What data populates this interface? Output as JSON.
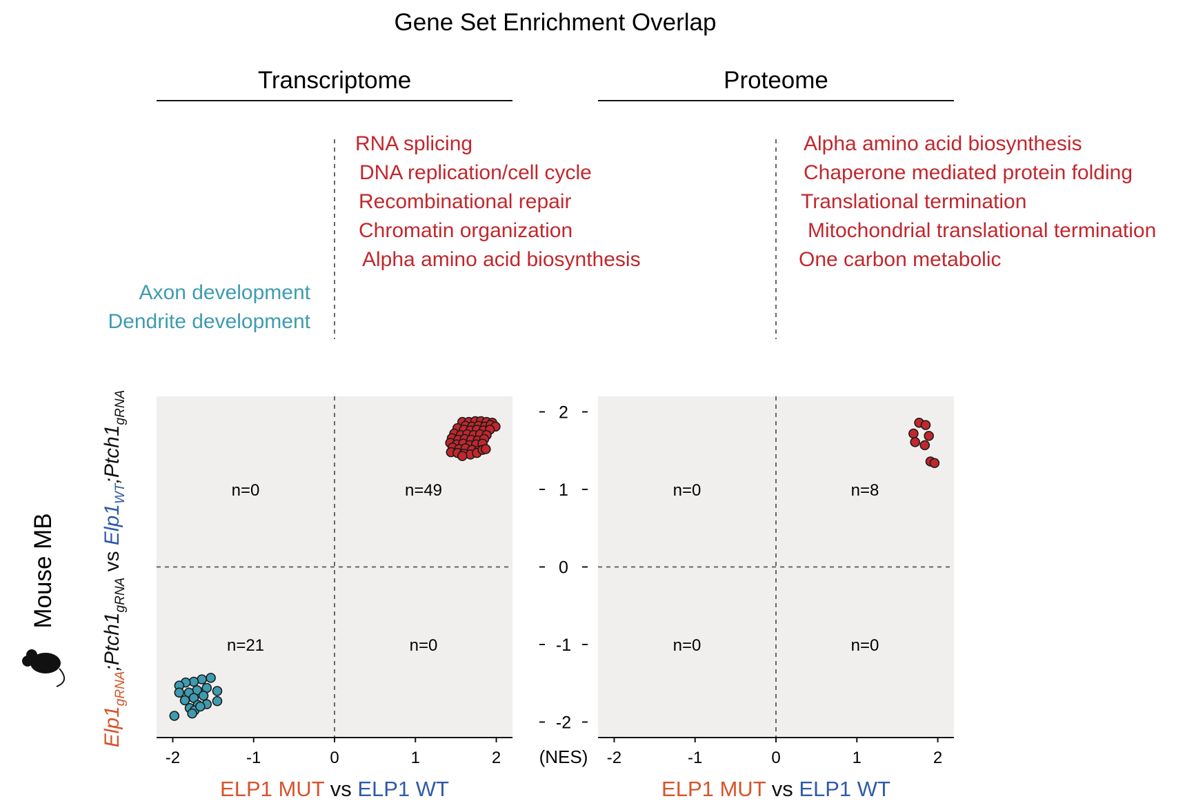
{
  "title": "Gene Set Enrichment Overlap",
  "row_label": "Mouse MB",
  "y_axis_label": {
    "a_base": "Elp1",
    "a_sub": "gRNA",
    "b_base": ";Ptch1",
    "b_sub": "gRNA",
    "vs": " vs ",
    "c_base": "Elp1",
    "c_sub": "WT",
    "d_base": ";Ptch1",
    "d_sub": "gRNA"
  },
  "x_axis_label": {
    "mut": "ELP1 MUT",
    "vs": " vs ",
    "wt": "ELP1 WT"
  },
  "nes_label": "(NES)",
  "colors": {
    "up": "#c1272d",
    "down": "#3e9bb0",
    "mut_label": "#d6532a",
    "wt_label": "#2f5aa8",
    "quadrant_bg": "#f1efee"
  },
  "transcriptome": {
    "header": "Transcriptome",
    "up_terms": [
      "RNA splicing",
      "DNA replication/cell cycle",
      "Recombinational repair",
      "Chromatin organization",
      "Alpha amino acid biosynthesis"
    ],
    "down_terms": [
      "Axon development",
      "Dendrite development"
    ]
  },
  "proteome": {
    "header": "Proteome",
    "up_terms": [
      "Alpha amino acid biosynthesis",
      "Chaperone mediated protein folding",
      "Translational termination",
      "Mitochondrial translational termination",
      "One carbon metabolic"
    ]
  },
  "chart_data": [
    {
      "type": "scatter",
      "title": "Transcriptome",
      "xlabel": "ELP1 MUT vs ELP1 WT",
      "ylabel": "Elp1gRNA;Ptch1gRNA vs Elp1WT;Ptch1gRNA",
      "xlim": [
        -2.2,
        2.2
      ],
      "ylim": [
        -2.2,
        2.2
      ],
      "xticks": [
        "-2",
        "-1",
        "0",
        "1",
        "2"
      ],
      "yticks": [
        "2",
        "1",
        "0",
        "-1",
        "-2"
      ],
      "quadrant_counts": {
        "top_left": "n=0",
        "top_right": "n=49",
        "bottom_left": "n=21",
        "bottom_right": "n=0"
      },
      "series": [
        {
          "color": "#c1272d",
          "points": [
            [
              1.58,
              1.87
            ],
            [
              1.66,
              1.87
            ],
            [
              1.74,
              1.88
            ],
            [
              1.81,
              1.88
            ],
            [
              1.88,
              1.87
            ],
            [
              1.95,
              1.86
            ],
            [
              1.62,
              1.82
            ],
            [
              1.7,
              1.81
            ],
            [
              1.78,
              1.82
            ],
            [
              1.86,
              1.81
            ],
            [
              1.93,
              1.83
            ],
            [
              1.99,
              1.81
            ],
            [
              1.52,
              1.79
            ],
            [
              1.6,
              1.77
            ],
            [
              1.68,
              1.76
            ],
            [
              1.76,
              1.77
            ],
            [
              1.84,
              1.76
            ],
            [
              1.92,
              1.77
            ],
            [
              1.48,
              1.72
            ],
            [
              1.56,
              1.7
            ],
            [
              1.64,
              1.71
            ],
            [
              1.72,
              1.7
            ],
            [
              1.8,
              1.71
            ],
            [
              1.88,
              1.7
            ],
            [
              1.45,
              1.66
            ],
            [
              1.53,
              1.64
            ],
            [
              1.61,
              1.65
            ],
            [
              1.69,
              1.64
            ],
            [
              1.77,
              1.63
            ],
            [
              1.85,
              1.65
            ],
            [
              1.43,
              1.6
            ],
            [
              1.51,
              1.58
            ],
            [
              1.59,
              1.59
            ],
            [
              1.67,
              1.57
            ],
            [
              1.75,
              1.58
            ],
            [
              1.83,
              1.59
            ],
            [
              1.46,
              1.54
            ],
            [
              1.54,
              1.52
            ],
            [
              1.62,
              1.53
            ],
            [
              1.7,
              1.51
            ],
            [
              1.78,
              1.5
            ],
            [
              1.44,
              1.48
            ],
            [
              1.52,
              1.47
            ],
            [
              1.6,
              1.46
            ],
            [
              1.68,
              1.45
            ],
            [
              1.76,
              1.47
            ],
            [
              1.58,
              1.43
            ],
            [
              1.83,
              1.51
            ],
            [
              1.87,
              1.52
            ]
          ]
        },
        {
          "color": "#3e9bb0",
          "points": [
            [
              -1.53,
              -1.43
            ],
            [
              -1.64,
              -1.45
            ],
            [
              -1.74,
              -1.48
            ],
            [
              -1.84,
              -1.49
            ],
            [
              -1.92,
              -1.53
            ],
            [
              -1.58,
              -1.56
            ],
            [
              -1.7,
              -1.59
            ],
            [
              -1.8,
              -1.62
            ],
            [
              -1.92,
              -1.62
            ],
            [
              -1.45,
              -1.6
            ],
            [
              -1.62,
              -1.66
            ],
            [
              -1.74,
              -1.69
            ],
            [
              -1.85,
              -1.72
            ],
            [
              -1.45,
              -1.73
            ],
            [
              -1.58,
              -1.77
            ],
            [
              -1.69,
              -1.78
            ],
            [
              -1.79,
              -1.82
            ],
            [
              -1.73,
              -1.85
            ],
            [
              -1.76,
              -1.89
            ],
            [
              -1.98,
              -1.92
            ],
            [
              -1.66,
              -1.8
            ]
          ]
        }
      ]
    },
    {
      "type": "scatter",
      "title": "Proteome",
      "xlabel": "ELP1 MUT vs ELP1 WT",
      "xlim": [
        -2.2,
        2.2
      ],
      "ylim": [
        -2.2,
        2.2
      ],
      "xticks": [
        "-2",
        "-1",
        "0",
        "1",
        "2"
      ],
      "quadrant_counts": {
        "top_left": "n=0",
        "top_right": "n=8",
        "bottom_left": "n=0",
        "bottom_right": "n=0"
      },
      "series": [
        {
          "color": "#c1272d",
          "points": [
            [
              1.77,
              1.86
            ],
            [
              1.85,
              1.83
            ],
            [
              1.7,
              1.72
            ],
            [
              1.89,
              1.69
            ],
            [
              1.72,
              1.61
            ],
            [
              1.84,
              1.57
            ],
            [
              1.91,
              1.36
            ],
            [
              1.96,
              1.34
            ]
          ]
        }
      ]
    }
  ]
}
